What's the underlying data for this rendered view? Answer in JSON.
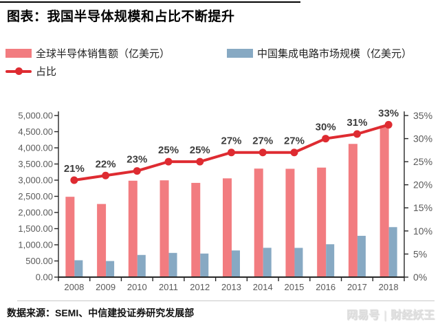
{
  "page": {
    "title": "图表：我国半导体规模和占比不断提升",
    "source": "数据来源：SEMI、中信建投证券研究发展部",
    "watermark": {
      "brand": "网易号",
      "divider": "|",
      "author": "财经妖王"
    }
  },
  "legend": [
    {
      "label": "全球半导体销售额（亿美元）",
      "type": "bar",
      "color": "#F27C80"
    },
    {
      "label": "中国集成电路市场规模（亿美元）",
      "type": "bar",
      "color": "#87A9C3"
    },
    {
      "label": "占比",
      "type": "line",
      "color": "#DE2B31"
    }
  ],
  "chart_data": {
    "type": "bar",
    "subtype": "bar-line-combo",
    "categories": [
      "2008",
      "2009",
      "2010",
      "2011",
      "2012",
      "2013",
      "2014",
      "2015",
      "2016",
      "2017",
      "2018"
    ],
    "series": [
      {
        "name": "全球半导体销售额（亿美元）",
        "type": "bar",
        "axis": "left",
        "color": "#F27C80",
        "values": [
          2486,
          2263,
          2983,
          2995,
          2916,
          3056,
          3358,
          3352,
          3389,
          4122,
          4688
        ]
      },
      {
        "name": "中国集成电路市场规模（亿美元）",
        "type": "bar",
        "axis": "left",
        "color": "#87A9C3",
        "values": [
          522,
          498,
          686,
          749,
          729,
          825,
          907,
          905,
          1017,
          1278,
          1547
        ]
      },
      {
        "name": "占比",
        "type": "line",
        "axis": "right",
        "color": "#DE2B31",
        "values": [
          21,
          22,
          23,
          25,
          25,
          27,
          27,
          27,
          30,
          31,
          33
        ],
        "data_labels": [
          "21%",
          "22%",
          "23%",
          "25%",
          "25%",
          "27%",
          "27%",
          "27%",
          "30%",
          "31%",
          "33%"
        ]
      }
    ],
    "left_axis": {
      "min": 0,
      "max": 5000,
      "step": 500,
      "tick_labels": [
        "0.00",
        "500.00",
        "1,000.00",
        "1,500.00",
        "2,000.00",
        "2,500.00",
        "3,000.00",
        "3,500.00",
        "4,000.00",
        "4,500.00",
        "5,000.00"
      ]
    },
    "right_axis": {
      "min": 0,
      "max": 35,
      "step": 5,
      "tick_labels": [
        "0%",
        "5%",
        "10%",
        "15%",
        "20%",
        "25%",
        "30%",
        "35%"
      ]
    },
    "grid": false,
    "legend_position": "top-left",
    "label_color": "#3d3d3d",
    "axis_text_color": "#595959",
    "axis_line_color": "#262626"
  }
}
